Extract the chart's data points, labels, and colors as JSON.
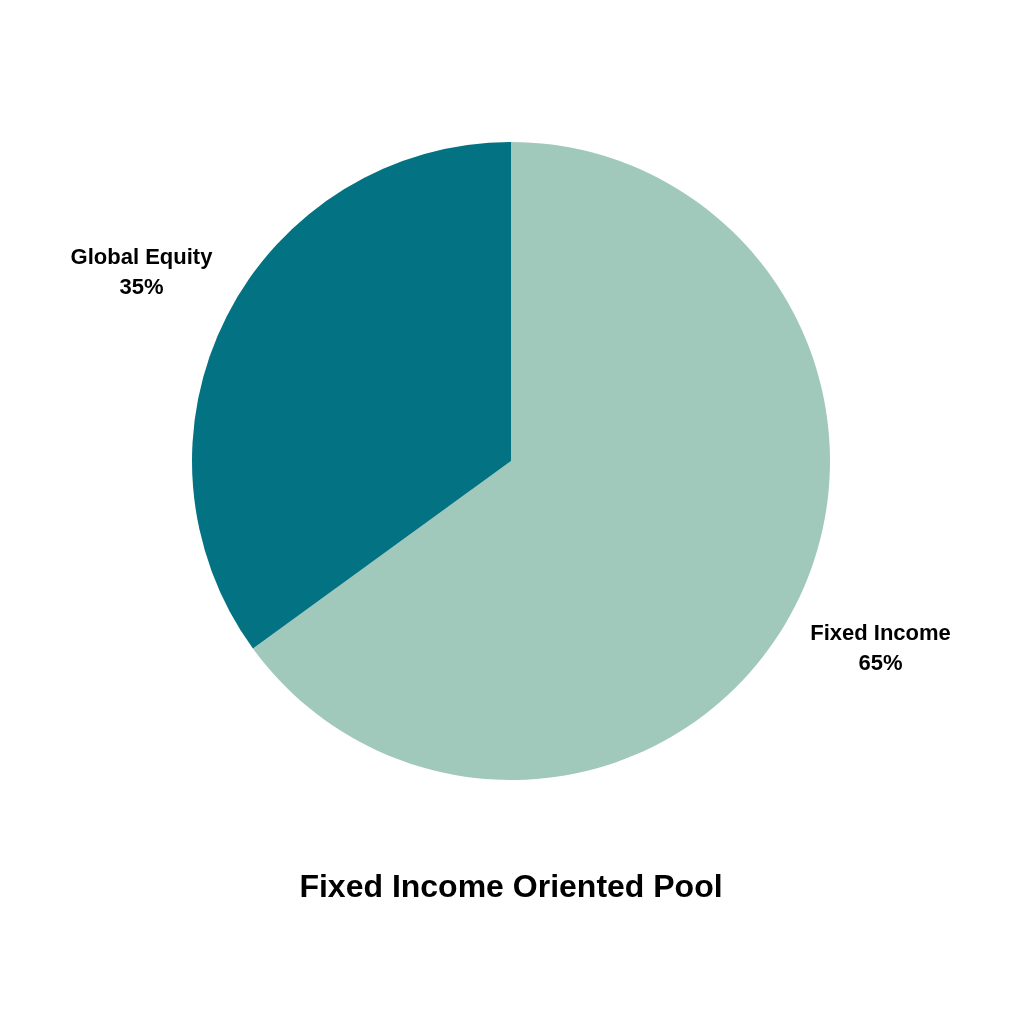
{
  "chart_data": {
    "type": "pie",
    "title": "Fixed Income Oriented Pool",
    "categories": [
      "Fixed Income",
      "Global Equity"
    ],
    "values": [
      65,
      35
    ],
    "colors": [
      "#a0c8bb",
      "#037282"
    ],
    "value_labels": [
      "65%",
      "35%"
    ],
    "legend": false
  }
}
